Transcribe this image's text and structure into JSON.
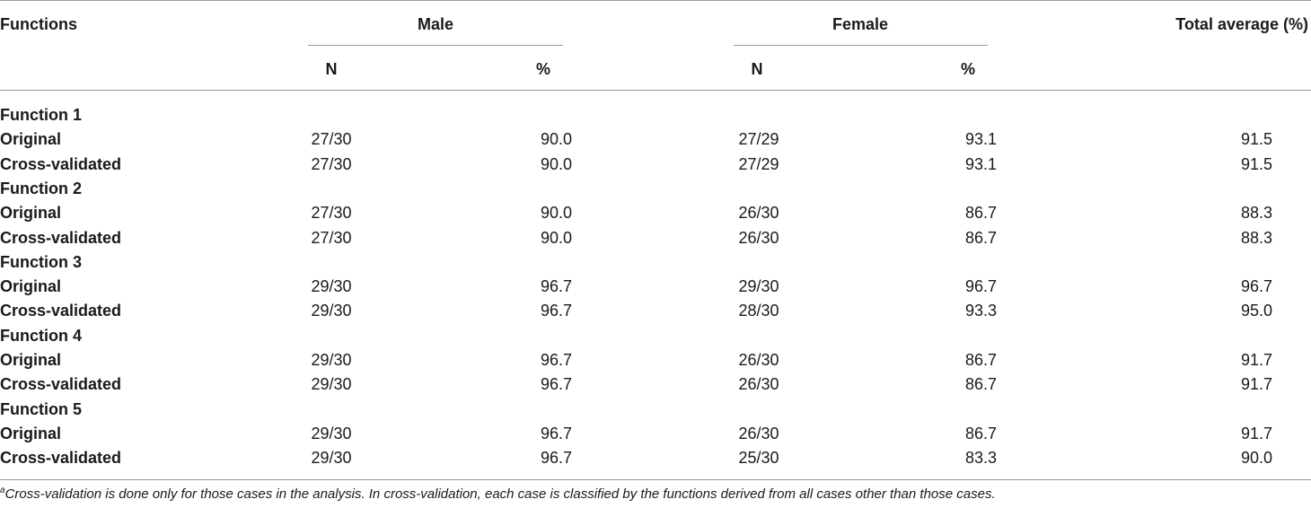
{
  "header": {
    "functions": "Functions",
    "male": "Male",
    "female": "Female",
    "total": "Total average (%)",
    "male_n": "N",
    "male_pct": "%",
    "female_n": "N",
    "female_pct": "%"
  },
  "rows": [
    {
      "label": "Function 1",
      "group": true
    },
    {
      "label": "Original",
      "male_n": "27/30",
      "male_pct": "90.0",
      "female_n": "27/29",
      "female_pct": "93.1",
      "total": "91.5"
    },
    {
      "label": "Cross-validated",
      "male_n": "27/30",
      "male_pct": "90.0",
      "female_n": "27/29",
      "female_pct": "93.1",
      "total": "91.5"
    },
    {
      "label": "Function 2",
      "group": true
    },
    {
      "label": "Original",
      "male_n": "27/30",
      "male_pct": "90.0",
      "female_n": "26/30",
      "female_pct": "86.7",
      "total": "88.3"
    },
    {
      "label": "Cross-validated",
      "male_n": "27/30",
      "male_pct": "90.0",
      "female_n": "26/30",
      "female_pct": "86.7",
      "total": "88.3"
    },
    {
      "label": "Function 3",
      "group": true
    },
    {
      "label": "Original",
      "male_n": "29/30",
      "male_pct": "96.7",
      "female_n": "29/30",
      "female_pct": "96.7",
      "total": "96.7"
    },
    {
      "label": "Cross-validated",
      "male_n": "29/30",
      "male_pct": "96.7",
      "female_n": "28/30",
      "female_pct": "93.3",
      "total": "95.0"
    },
    {
      "label": "Function 4",
      "group": true
    },
    {
      "label": "Original",
      "male_n": "29/30",
      "male_pct": "96.7",
      "female_n": "26/30",
      "female_pct": "86.7",
      "total": "91.7"
    },
    {
      "label": "Cross-validated",
      "male_n": "29/30",
      "male_pct": "96.7",
      "female_n": "26/30",
      "female_pct": "86.7",
      "total": "91.7"
    },
    {
      "label": "Function 5",
      "group": true
    },
    {
      "label": "Original",
      "male_n": "29/30",
      "male_pct": "96.7",
      "female_n": "26/30",
      "female_pct": "86.7",
      "total": "91.7"
    },
    {
      "label": "Cross-validated",
      "male_n": "29/30",
      "male_pct": "96.7",
      "female_n": "25/30",
      "female_pct": "83.3",
      "total": "90.0"
    }
  ],
  "footnote": {
    "marker": "a",
    "text": "Cross-validation is done only for those cases in the analysis. In cross-validation, each case is classified by the functions derived from all cases other than those cases."
  }
}
